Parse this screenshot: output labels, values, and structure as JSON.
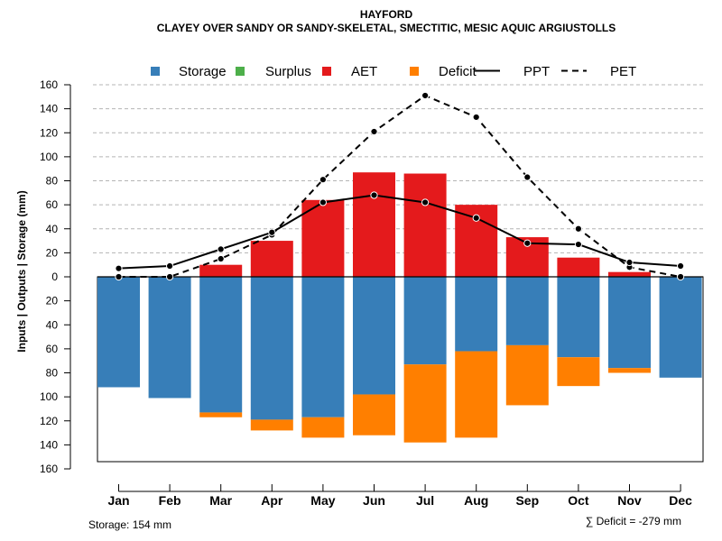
{
  "chart_data": {
    "type": "bar",
    "title": "HAYFORD",
    "subtitle": "CLAYEY OVER SANDY OR SANDY-SKELETAL, SMECTITIC, MESIC AQUIC ARGIUSTOLLS",
    "ylabel": "Inputs | Outputs | Storage    (mm)",
    "ylim": [
      -160,
      160
    ],
    "yticks": [
      -160,
      -140,
      -120,
      -100,
      -80,
      -60,
      -40,
      -20,
      0,
      20,
      40,
      60,
      80,
      100,
      120,
      140,
      160
    ],
    "ytick_labels": [
      "160",
      "140",
      "120",
      "100",
      "80",
      "60",
      "40",
      "20",
      "0",
      "20",
      "40",
      "60",
      "80",
      "100",
      "120",
      "140",
      "160"
    ],
    "categories": [
      "Jan",
      "Feb",
      "Mar",
      "Apr",
      "May",
      "Jun",
      "Jul",
      "Aug",
      "Sep",
      "Oct",
      "Nov",
      "Dec"
    ],
    "legend": [
      {
        "label": "Storage",
        "color": "#377EB8",
        "kind": "box"
      },
      {
        "label": "Surplus",
        "color": "#4DAF4A",
        "kind": "box"
      },
      {
        "label": "AET",
        "color": "#E41A1C",
        "kind": "box"
      },
      {
        "label": "Deficit",
        "color": "#FF7F00",
        "kind": "box"
      },
      {
        "label": "PPT",
        "color": "#000000",
        "kind": "solid"
      },
      {
        "label": "PET",
        "color": "#000000",
        "kind": "dashed"
      }
    ],
    "series": [
      {
        "name": "AET",
        "color": "#E41A1C",
        "values": [
          0,
          0,
          10,
          30,
          64,
          87,
          86,
          60,
          33,
          16,
          4,
          0
        ]
      },
      {
        "name": "Storage",
        "color": "#377EB8",
        "values": [
          92,
          101,
          113,
          119,
          117,
          98,
          73,
          62,
          57,
          67,
          76,
          84
        ]
      },
      {
        "name": "Deficit",
        "color": "#FF7F00",
        "values": [
          0,
          0,
          4,
          9,
          17,
          34,
          65,
          72,
          50,
          24,
          4,
          0
        ]
      },
      {
        "name": "Surplus",
        "color": "#4DAF4A",
        "values": [
          0,
          0,
          0,
          0,
          0,
          0,
          0,
          0,
          0,
          0,
          0,
          0
        ]
      },
      {
        "name": "PPT",
        "color": "#000000",
        "values": [
          7,
          9,
          23,
          37,
          62,
          68,
          62,
          49,
          28,
          27,
          12,
          9
        ]
      },
      {
        "name": "PET",
        "color": "#000000",
        "values": [
          0,
          0,
          15,
          35,
          81,
          121,
          151,
          133,
          83,
          40,
          8,
          0
        ]
      }
    ],
    "storage_capacity": 154,
    "footer_left": "Storage: 154 mm",
    "footer_right": "∑ Deficit = -279 mm",
    "grid": true
  }
}
